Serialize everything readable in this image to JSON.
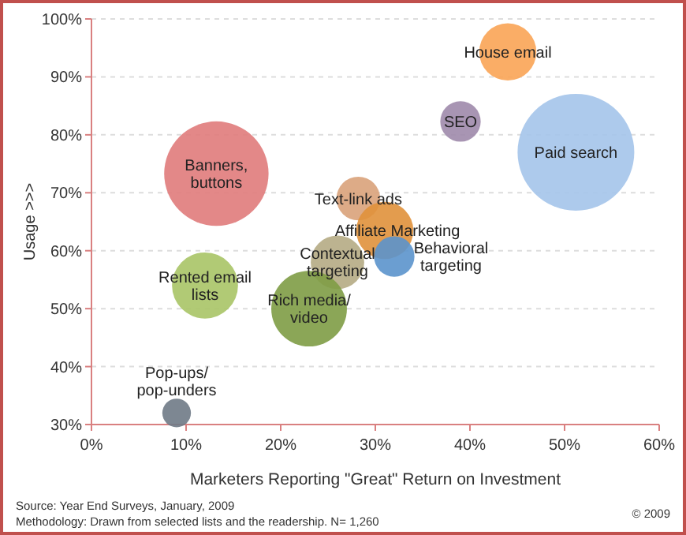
{
  "chart_data": {
    "type": "bubble",
    "xlabel": "Marketers Reporting \"Great\" Return on Investment",
    "ylabel": "Usage >>>",
    "xlim": [
      0,
      60
    ],
    "ylim": [
      30,
      100
    ],
    "xticks": [
      {
        "value": 0,
        "label": "0%"
      },
      {
        "value": 10,
        "label": "10%"
      },
      {
        "value": 20,
        "label": "20%"
      },
      {
        "value": 30,
        "label": "30%"
      },
      {
        "value": 40,
        "label": "40%"
      },
      {
        "value": 50,
        "label": "50%"
      },
      {
        "value": 60,
        "label": "60%"
      }
    ],
    "yticks": [
      {
        "value": 30,
        "label": "30%"
      },
      {
        "value": 40,
        "label": "40%"
      },
      {
        "value": 50,
        "label": "50%"
      },
      {
        "value": 60,
        "label": "60%"
      },
      {
        "value": 70,
        "label": "70%"
      },
      {
        "value": 80,
        "label": "80%"
      },
      {
        "value": 90,
        "label": "90%"
      },
      {
        "value": 100,
        "label": "100%"
      }
    ],
    "grid": "y",
    "series": [
      {
        "name": "Banners,\nbuttons",
        "color": "#e07b7b",
        "x": [
          13.2
        ],
        "values": [
          73.3
        ],
        "sizes": [
          0.8
        ]
      },
      {
        "name": "House email",
        "color": "#f9a455",
        "x": [
          44
        ],
        "values": [
          94.3
        ],
        "sizes": [
          0.24
        ]
      },
      {
        "name": "SEO",
        "color": "#9e8aab",
        "x": [
          39
        ],
        "values": [
          82.3
        ],
        "sizes": [
          0.12
        ]
      },
      {
        "name": "Paid search",
        "color": "#a4c4ea",
        "x": [
          51.2
        ],
        "values": [
          77
        ],
        "sizes": [
          1
        ]
      },
      {
        "name": "Text-link ads",
        "color": "#d9a27a",
        "x": [
          28.2
        ],
        "values": [
          69
        ],
        "sizes": [
          0.14
        ]
      },
      {
        "name": "Affiliate Marketing",
        "color": "#e0913b",
        "x": [
          31
        ],
        "values": [
          63.5
        ],
        "sizes": [
          0.24
        ]
      },
      {
        "name": "Behavioral\ntargeting",
        "color": "#5b93cc",
        "x": [
          32
        ],
        "values": [
          59
        ],
        "sizes": [
          0.12
        ]
      },
      {
        "name": "Contextual\ntargeting",
        "color": "#b5ab84",
        "x": [
          26
        ],
        "values": [
          58
        ],
        "sizes": [
          0.21
        ]
      },
      {
        "name": "Rich media/\nvideo",
        "color": "#7e9c45",
        "x": [
          23
        ],
        "values": [
          50
        ],
        "sizes": [
          0.42
        ]
      },
      {
        "name": "Rented email\nlists",
        "color": "#a8c466",
        "x": [
          12
        ],
        "values": [
          54
        ],
        "sizes": [
          0.32
        ]
      },
      {
        "name": "Pop-ups/\npop-unders",
        "color": "#6f7a86",
        "x": [
          9
        ],
        "values": [
          32
        ],
        "sizes": [
          0.06
        ]
      }
    ],
    "annotations": [
      "Source: Year End Surveys, January, 2009",
      "Methodology: Drawn from selected lists and the readership. N= 1,260",
      "© 2009"
    ]
  }
}
